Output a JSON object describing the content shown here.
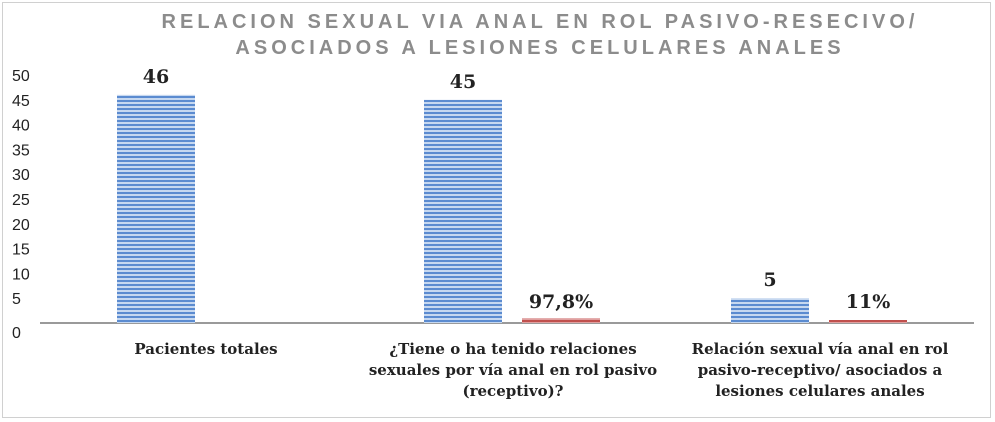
{
  "chart_data": {
    "type": "bar",
    "title_lines": [
      "RELACION SEXUAL VIA ANAL EN ROL PASIVO-RESECIVO/",
      "ASOCIADOS A LESIONES CELULARES ANALES"
    ],
    "categories": [
      [
        "Pacientes totales"
      ],
      [
        "¿Tiene o ha tenido relaciones",
        "sexuales por vía anal en rol pasivo",
        "(receptivo)?"
      ],
      [
        "Relación sexual vía anal en rol",
        "pasivo-receptivo/ asociados a",
        "lesiones celulares anales"
      ]
    ],
    "series": [
      {
        "values": [
          46,
          45,
          5
        ],
        "labels": [
          "46",
          "45",
          "5"
        ],
        "color": "#5b8bd0"
      },
      {
        "values": [
          0,
          0.978,
          0.11
        ],
        "labels": [
          "",
          "97,8%",
          "11%"
        ],
        "color": "#c0504d"
      }
    ],
    "ylim": [
      0,
      50
    ],
    "yticks": [
      0,
      5,
      10,
      15,
      20,
      25,
      30,
      35,
      40,
      45,
      50
    ],
    "grid": false,
    "legend": "none"
  }
}
